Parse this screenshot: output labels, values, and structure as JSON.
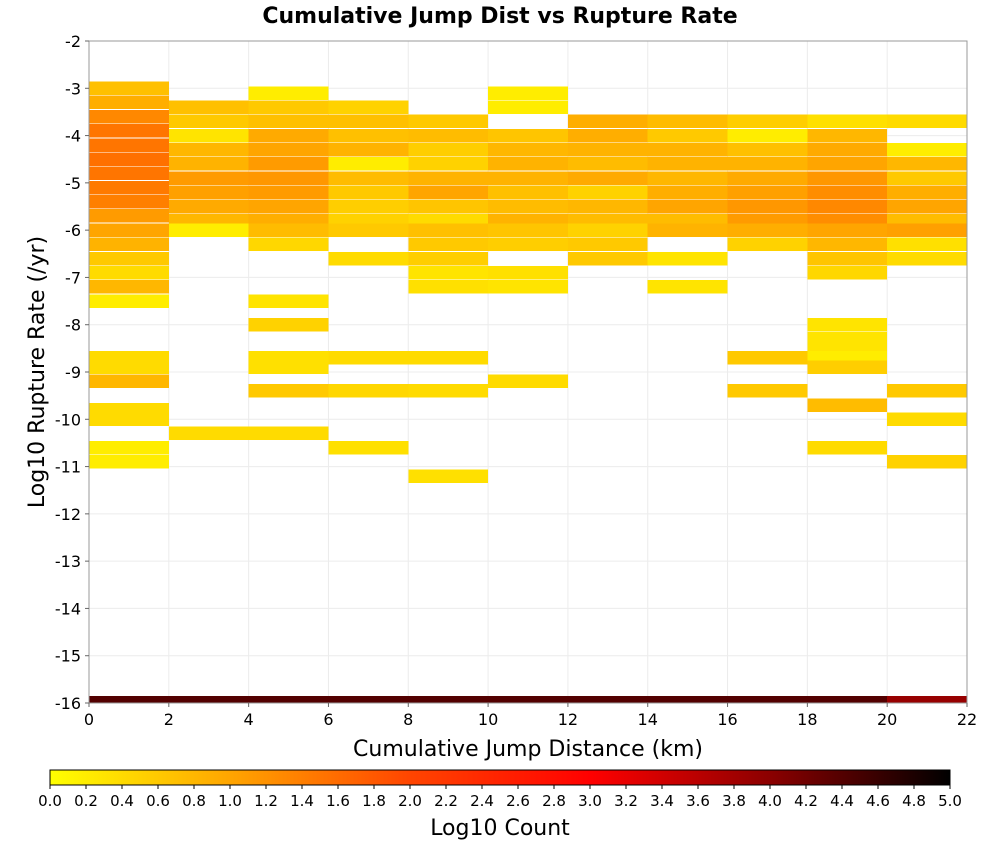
{
  "chart_data": {
    "type": "heatmap",
    "title": "Cumulative Jump Dist vs Rupture Rate",
    "xlabel": "Cumulative Jump Distance (km)",
    "ylabel": "Log10 Rupture Rate (/yr)",
    "xlim": [
      0,
      22
    ],
    "ylim": [
      -16,
      -2
    ],
    "xticks": [
      "0",
      "2",
      "4",
      "6",
      "8",
      "10",
      "12",
      "14",
      "16",
      "18",
      "20",
      "22"
    ],
    "yticks": [
      "-2",
      "-3",
      "-4",
      "-5",
      "-6",
      "-7",
      "-8",
      "-9",
      "-10",
      "-11",
      "-12",
      "-13",
      "-14",
      "-15",
      "-16"
    ],
    "bin_width_x": 2,
    "bin_height_y": 0.286,
    "grid": true,
    "colorbar": {
      "label": "Log10 Count",
      "range": [
        0,
        5
      ],
      "ticks": [
        "0.0",
        "0.2",
        "0.4",
        "0.6",
        "0.8",
        "1.0",
        "1.2",
        "1.4",
        "1.6",
        "1.8",
        "2.0",
        "2.2",
        "2.4",
        "2.6",
        "2.8",
        "3.0",
        "3.2",
        "3.4",
        "3.6",
        "3.8",
        "4.0",
        "4.2",
        "4.4",
        "4.6",
        "4.8",
        "5.0"
      ],
      "stops": [
        "#ffff00",
        "#ffa500",
        "#ff4500",
        "#ff0000",
        "#8b0000",
        "#000000"
      ]
    },
    "columns": [
      {
        "x0": 0,
        "cells": [
          {
            "y": -3.0,
            "v": 0.7
          },
          {
            "y": -3.3,
            "v": 0.9
          },
          {
            "y": -3.6,
            "v": 1.3
          },
          {
            "y": -3.9,
            "v": 1.5
          },
          {
            "y": -4.2,
            "v": 1.5
          },
          {
            "y": -4.5,
            "v": 1.55
          },
          {
            "y": -4.8,
            "v": 1.5
          },
          {
            "y": -5.1,
            "v": 1.45
          },
          {
            "y": -5.4,
            "v": 1.4
          },
          {
            "y": -5.7,
            "v": 1.1
          },
          {
            "y": -6.0,
            "v": 1.0
          },
          {
            "y": -6.3,
            "v": 0.85
          },
          {
            "y": -6.6,
            "v": 0.6
          },
          {
            "y": -6.9,
            "v": 0.4
          },
          {
            "y": -7.2,
            "v": 0.8
          },
          {
            "y": -7.5,
            "v": 0.2
          },
          {
            "y": -8.7,
            "v": 0.4
          },
          {
            "y": -8.9,
            "v": 0.4
          },
          {
            "y": -9.2,
            "v": 0.8
          },
          {
            "y": -9.8,
            "v": 0.4
          },
          {
            "y": -10.0,
            "v": 0.4
          },
          {
            "y": -10.6,
            "v": 0.2
          },
          {
            "y": -10.9,
            "v": 0.2
          },
          {
            "y": -16.0,
            "v": 4.4
          }
        ]
      },
      {
        "x0": 2,
        "cells": [
          {
            "y": -3.4,
            "v": 0.7
          },
          {
            "y": -3.7,
            "v": 0.6
          },
          {
            "y": -4.0,
            "v": 0.3
          },
          {
            "y": -4.3,
            "v": 0.8
          },
          {
            "y": -4.6,
            "v": 0.85
          },
          {
            "y": -4.9,
            "v": 1.1
          },
          {
            "y": -5.2,
            "v": 1.05
          },
          {
            "y": -5.5,
            "v": 0.95
          },
          {
            "y": -5.8,
            "v": 0.8
          },
          {
            "y": -6.0,
            "v": 0.2
          },
          {
            "y": -10.3,
            "v": 0.4
          },
          {
            "y": -16.0,
            "v": 4.4
          }
        ]
      },
      {
        "x0": 4,
        "cells": [
          {
            "y": -3.1,
            "v": 0.2
          },
          {
            "y": -3.4,
            "v": 0.6
          },
          {
            "y": -3.7,
            "v": 0.7
          },
          {
            "y": -4.0,
            "v": 0.95
          },
          {
            "y": -4.3,
            "v": 1.0
          },
          {
            "y": -4.6,
            "v": 1.1
          },
          {
            "y": -4.9,
            "v": 1.15
          },
          {
            "y": -5.2,
            "v": 1.1
          },
          {
            "y": -5.5,
            "v": 1.0
          },
          {
            "y": -5.8,
            "v": 0.9
          },
          {
            "y": -6.0,
            "v": 0.75
          },
          {
            "y": -6.3,
            "v": 0.45
          },
          {
            "y": -7.5,
            "v": 0.3
          },
          {
            "y": -8.0,
            "v": 0.5
          },
          {
            "y": -8.7,
            "v": 0.35
          },
          {
            "y": -8.9,
            "v": 0.35
          },
          {
            "y": -9.4,
            "v": 0.6
          },
          {
            "y": -10.3,
            "v": 0.4
          },
          {
            "y": -16.0,
            "v": 4.4
          }
        ]
      },
      {
        "x0": 6,
        "cells": [
          {
            "y": -3.4,
            "v": 0.5
          },
          {
            "y": -3.7,
            "v": 0.7
          },
          {
            "y": -4.0,
            "v": 0.7
          },
          {
            "y": -4.3,
            "v": 0.85
          },
          {
            "y": -4.6,
            "v": 0.2
          },
          {
            "y": -4.9,
            "v": 0.75
          },
          {
            "y": -5.2,
            "v": 0.6
          },
          {
            "y": -5.5,
            "v": 0.55
          },
          {
            "y": -5.8,
            "v": 0.5
          },
          {
            "y": -6.0,
            "v": 0.6
          },
          {
            "y": -6.6,
            "v": 0.4
          },
          {
            "y": -8.7,
            "v": 0.4
          },
          {
            "y": -9.4,
            "v": 0.45
          },
          {
            "y": -10.6,
            "v": 0.35
          },
          {
            "y": -16.0,
            "v": 4.4
          }
        ]
      },
      {
        "x0": 8,
        "cells": [
          {
            "y": -3.7,
            "v": 0.6
          },
          {
            "y": -4.0,
            "v": 0.75
          },
          {
            "y": -4.3,
            "v": 0.55
          },
          {
            "y": -4.6,
            "v": 0.5
          },
          {
            "y": -4.9,
            "v": 0.85
          },
          {
            "y": -5.2,
            "v": 1.0
          },
          {
            "y": -5.5,
            "v": 0.65
          },
          {
            "y": -5.8,
            "v": 0.4
          },
          {
            "y": -6.0,
            "v": 0.7
          },
          {
            "y": -6.3,
            "v": 0.6
          },
          {
            "y": -6.6,
            "v": 0.55
          },
          {
            "y": -6.9,
            "v": 0.3
          },
          {
            "y": -7.2,
            "v": 0.35
          },
          {
            "y": -8.7,
            "v": 0.4
          },
          {
            "y": -9.4,
            "v": 0.4
          },
          {
            "y": -11.2,
            "v": 0.35
          },
          {
            "y": -16.0,
            "v": 4.4
          }
        ]
      },
      {
        "x0": 10,
        "cells": [
          {
            "y": -3.1,
            "v": 0.2
          },
          {
            "y": -3.4,
            "v": 0.2
          },
          {
            "y": -4.0,
            "v": 0.65
          },
          {
            "y": -4.3,
            "v": 0.8
          },
          {
            "y": -4.6,
            "v": 0.85
          },
          {
            "y": -4.9,
            "v": 0.85
          },
          {
            "y": -5.2,
            "v": 0.7
          },
          {
            "y": -5.5,
            "v": 0.75
          },
          {
            "y": -5.8,
            "v": 0.85
          },
          {
            "y": -6.0,
            "v": 0.65
          },
          {
            "y": -6.3,
            "v": 0.55
          },
          {
            "y": -6.9,
            "v": 0.35
          },
          {
            "y": -7.2,
            "v": 0.3
          },
          {
            "y": -9.2,
            "v": 0.4
          },
          {
            "y": -16.0,
            "v": 4.4
          }
        ]
      },
      {
        "x0": 12,
        "cells": [
          {
            "y": -3.7,
            "v": 0.9
          },
          {
            "y": -4.0,
            "v": 0.9
          },
          {
            "y": -4.3,
            "v": 0.85
          },
          {
            "y": -4.6,
            "v": 0.75
          },
          {
            "y": -4.9,
            "v": 0.95
          },
          {
            "y": -5.2,
            "v": 0.5
          },
          {
            "y": -5.5,
            "v": 0.8
          },
          {
            "y": -5.8,
            "v": 0.75
          },
          {
            "y": -6.0,
            "v": 0.5
          },
          {
            "y": -6.3,
            "v": 0.6
          },
          {
            "y": -6.6,
            "v": 0.6
          },
          {
            "y": -16.0,
            "v": 4.4
          }
        ]
      },
      {
        "x0": 14,
        "cells": [
          {
            "y": -3.7,
            "v": 0.75
          },
          {
            "y": -4.0,
            "v": 0.6
          },
          {
            "y": -4.3,
            "v": 0.85
          },
          {
            "y": -4.6,
            "v": 0.85
          },
          {
            "y": -4.9,
            "v": 0.8
          },
          {
            "y": -5.2,
            "v": 0.9
          },
          {
            "y": -5.5,
            "v": 1.0
          },
          {
            "y": -5.8,
            "v": 0.75
          },
          {
            "y": -6.0,
            "v": 0.85
          },
          {
            "y": -6.6,
            "v": 0.3
          },
          {
            "y": -7.2,
            "v": 0.3
          },
          {
            "y": -16.0,
            "v": 4.4
          }
        ]
      },
      {
        "x0": 16,
        "cells": [
          {
            "y": -3.7,
            "v": 0.55
          },
          {
            "y": -4.0,
            "v": 0.2
          },
          {
            "y": -4.3,
            "v": 0.7
          },
          {
            "y": -4.6,
            "v": 0.85
          },
          {
            "y": -4.9,
            "v": 0.95
          },
          {
            "y": -5.2,
            "v": 1.05
          },
          {
            "y": -5.5,
            "v": 1.15
          },
          {
            "y": -5.8,
            "v": 1.1
          },
          {
            "y": -6.0,
            "v": 0.9
          },
          {
            "y": -6.3,
            "v": 0.5
          },
          {
            "y": -8.7,
            "v": 0.6
          },
          {
            "y": -9.4,
            "v": 0.6
          },
          {
            "y": -16.0,
            "v": 4.4
          }
        ]
      },
      {
        "x0": 18,
        "cells": [
          {
            "y": -3.7,
            "v": 0.35
          },
          {
            "y": -4.0,
            "v": 0.8
          },
          {
            "y": -4.3,
            "v": 0.95
          },
          {
            "y": -4.6,
            "v": 1.0
          },
          {
            "y": -4.9,
            "v": 1.15
          },
          {
            "y": -5.2,
            "v": 1.25
          },
          {
            "y": -5.5,
            "v": 1.3
          },
          {
            "y": -5.8,
            "v": 1.25
          },
          {
            "y": -6.0,
            "v": 1.0
          },
          {
            "y": -6.3,
            "v": 0.8
          },
          {
            "y": -6.6,
            "v": 0.65
          },
          {
            "y": -6.9,
            "v": 0.45
          },
          {
            "y": -8.0,
            "v": 0.3
          },
          {
            "y": -8.3,
            "v": 0.3
          },
          {
            "y": -8.5,
            "v": 0.3
          },
          {
            "y": -8.7,
            "v": 0.2
          },
          {
            "y": -8.9,
            "v": 0.55
          },
          {
            "y": -9.7,
            "v": 0.75
          },
          {
            "y": -10.6,
            "v": 0.4
          },
          {
            "y": -16.0,
            "v": 4.4
          }
        ]
      },
      {
        "x0": 20,
        "cells": [
          {
            "y": -3.7,
            "v": 0.4
          },
          {
            "y": -4.3,
            "v": 0.2
          },
          {
            "y": -4.6,
            "v": 0.8
          },
          {
            "y": -4.9,
            "v": 0.6
          },
          {
            "y": -5.2,
            "v": 0.9
          },
          {
            "y": -5.5,
            "v": 1.0
          },
          {
            "y": -5.8,
            "v": 0.75
          },
          {
            "y": -6.0,
            "v": 1.05
          },
          {
            "y": -6.3,
            "v": 0.35
          },
          {
            "y": -6.6,
            "v": 0.4
          },
          {
            "y": -9.4,
            "v": 0.6
          },
          {
            "y": -10.0,
            "v": 0.4
          },
          {
            "y": -10.9,
            "v": 0.5
          },
          {
            "y": -16.0,
            "v": 3.9
          }
        ]
      }
    ]
  }
}
